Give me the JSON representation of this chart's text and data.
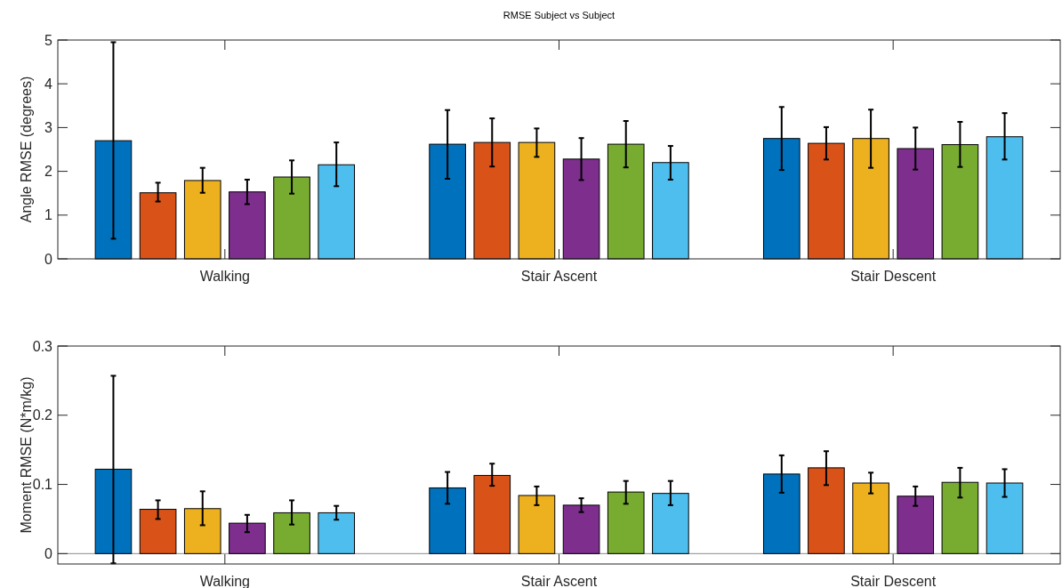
{
  "chart_data": [
    {
      "type": "bar",
      "title": "RMSE Subject vs Subject",
      "ylabel": "Angle RMSE (degrees)",
      "categories": [
        "Walking",
        "Stair Ascent",
        "Stair Descent"
      ],
      "ylim": [
        0,
        5
      ],
      "yticks": [
        0,
        1,
        2,
        3,
        4,
        5
      ],
      "series": [
        {
          "color": "#0072bd",
          "values": [
            2.7,
            2.62,
            2.75
          ],
          "errors": [
            [
              0.46,
              4.95
            ],
            [
              1.83,
              3.4
            ],
            [
              2.03,
              3.47
            ]
          ]
        },
        {
          "color": "#d95319",
          "values": [
            1.51,
            2.66,
            2.64
          ],
          "errors": [
            [
              1.31,
              1.74
            ],
            [
              2.11,
              3.21
            ],
            [
              2.27,
              3.01
            ]
          ]
        },
        {
          "color": "#edb120",
          "values": [
            1.79,
            2.66,
            2.75
          ],
          "errors": [
            [
              1.51,
              2.08
            ],
            [
              2.33,
              2.98
            ],
            [
              2.08,
              3.41
            ]
          ]
        },
        {
          "color": "#7e2f8e",
          "values": [
            1.53,
            2.28,
            2.52
          ],
          "errors": [
            [
              1.25,
              1.81
            ],
            [
              1.8,
              2.76
            ],
            [
              2.04,
              3.0
            ]
          ]
        },
        {
          "color": "#77ac30",
          "values": [
            1.87,
            2.62,
            2.61
          ],
          "errors": [
            [
              1.49,
              2.25
            ],
            [
              2.09,
              3.15
            ],
            [
              2.1,
              3.13
            ]
          ]
        },
        {
          "color": "#4dbeee",
          "values": [
            2.15,
            2.2,
            2.79
          ],
          "errors": [
            [
              1.66,
              2.66
            ],
            [
              1.81,
              2.58
            ],
            [
              2.27,
              3.33
            ]
          ]
        }
      ]
    },
    {
      "type": "bar",
      "ylabel": "Moment RMSE (N*m/kg)",
      "categories": [
        "Walking",
        "Stair Ascent",
        "Stair Descent"
      ],
      "ylim": [
        -0.015,
        0.3
      ],
      "yticks": [
        0,
        0.1,
        0.2,
        0.3
      ],
      "ref_lines": [
        {
          "axis": "y",
          "value": 0,
          "color": "#8c8c8c"
        }
      ],
      "series": [
        {
          "color": "#0072bd",
          "values": [
            0.122,
            0.095,
            0.115
          ],
          "errors": [
            [
              -0.014,
              0.257
            ],
            [
              0.072,
              0.118
            ],
            [
              0.088,
              0.142
            ]
          ]
        },
        {
          "color": "#d95319",
          "values": [
            0.064,
            0.113,
            0.124
          ],
          "errors": [
            [
              0.05,
              0.077
            ],
            [
              0.098,
              0.13
            ],
            [
              0.099,
              0.148
            ]
          ]
        },
        {
          "color": "#edb120",
          "values": [
            0.065,
            0.084,
            0.102
          ],
          "errors": [
            [
              0.041,
              0.09
            ],
            [
              0.07,
              0.097
            ],
            [
              0.087,
              0.117
            ]
          ]
        },
        {
          "color": "#7e2f8e",
          "values": [
            0.044,
            0.07,
            0.083
          ],
          "errors": [
            [
              0.031,
              0.056
            ],
            [
              0.06,
              0.08
            ],
            [
              0.069,
              0.097
            ]
          ]
        },
        {
          "color": "#77ac30",
          "values": [
            0.059,
            0.089,
            0.103
          ],
          "errors": [
            [
              0.042,
              0.077
            ],
            [
              0.072,
              0.105
            ],
            [
              0.081,
              0.124
            ]
          ]
        },
        {
          "color": "#4dbeee",
          "values": [
            0.059,
            0.087,
            0.102
          ],
          "errors": [
            [
              0.049,
              0.069
            ],
            [
              0.07,
              0.105
            ],
            [
              0.082,
              0.122
            ]
          ]
        }
      ]
    }
  ]
}
